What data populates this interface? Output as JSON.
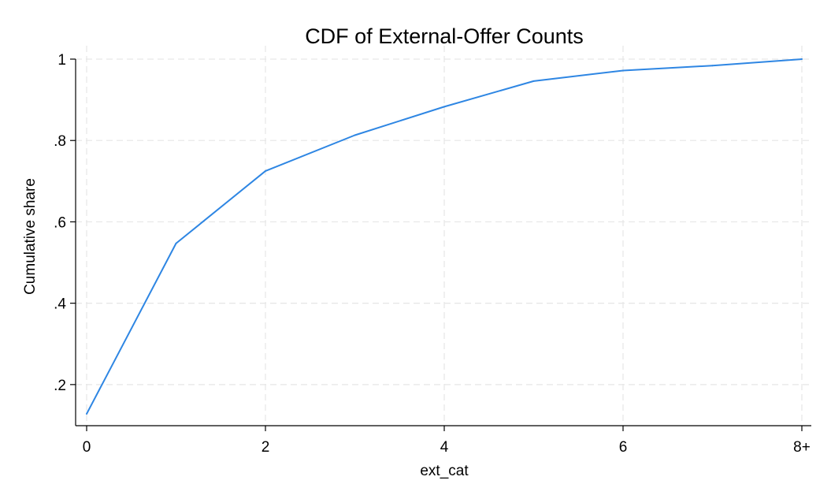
{
  "chart_data": {
    "type": "line",
    "title": "CDF of External-Offer Counts",
    "xlabel": "ext_cat",
    "ylabel": "Cumulative share",
    "x": [
      0,
      1,
      2,
      3,
      4,
      5,
      6,
      7,
      8
    ],
    "x_ticks": [
      {
        "value": 0,
        "label": "0"
      },
      {
        "value": 2,
        "label": "2"
      },
      {
        "value": 4,
        "label": "4"
      },
      {
        "value": 6,
        "label": "6"
      },
      {
        "value": 8,
        "label": "8+"
      }
    ],
    "y_ticks": [
      {
        "value": 0.2,
        "label": ".2"
      },
      {
        "value": 0.4,
        "label": ".4"
      },
      {
        "value": 0.6,
        "label": ".6"
      },
      {
        "value": 0.8,
        "label": ".8"
      },
      {
        "value": 1.0,
        "label": "1"
      }
    ],
    "series": [
      {
        "values": [
          0.128,
          0.547,
          0.725,
          0.813,
          0.883,
          0.946,
          0.972,
          0.984,
          1.0
        ],
        "color": "#2e86e3"
      }
    ],
    "xlim": [
      0,
      8
    ],
    "ylim": [
      0.128,
      1.0
    ],
    "grid": true,
    "legend": "none"
  }
}
